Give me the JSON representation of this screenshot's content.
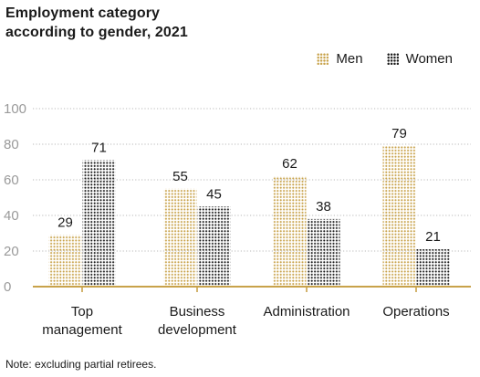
{
  "title_line1": "Employment category",
  "title_line2": "according to gender, 2021",
  "note": "Note: excluding partial retirees.",
  "colors": {
    "men": "#c8a24a",
    "women": "#1a1a1a",
    "axis": "#c8a24a",
    "grid": "#b9b9b9"
  },
  "chart_data": {
    "type": "bar",
    "categories": [
      [
        "Top",
        "management"
      ],
      [
        "Business",
        "development"
      ],
      [
        "Administration"
      ],
      [
        "Operations"
      ]
    ],
    "series": [
      {
        "name": "Men",
        "values": [
          29,
          55,
          62,
          79
        ]
      },
      {
        "name": "Women",
        "values": [
          71,
          45,
          38,
          21
        ]
      }
    ],
    "ylim": [
      0,
      100
    ],
    "yticks": [
      0,
      20,
      40,
      60,
      80,
      100
    ],
    "grid": true,
    "legend": "top-right"
  }
}
